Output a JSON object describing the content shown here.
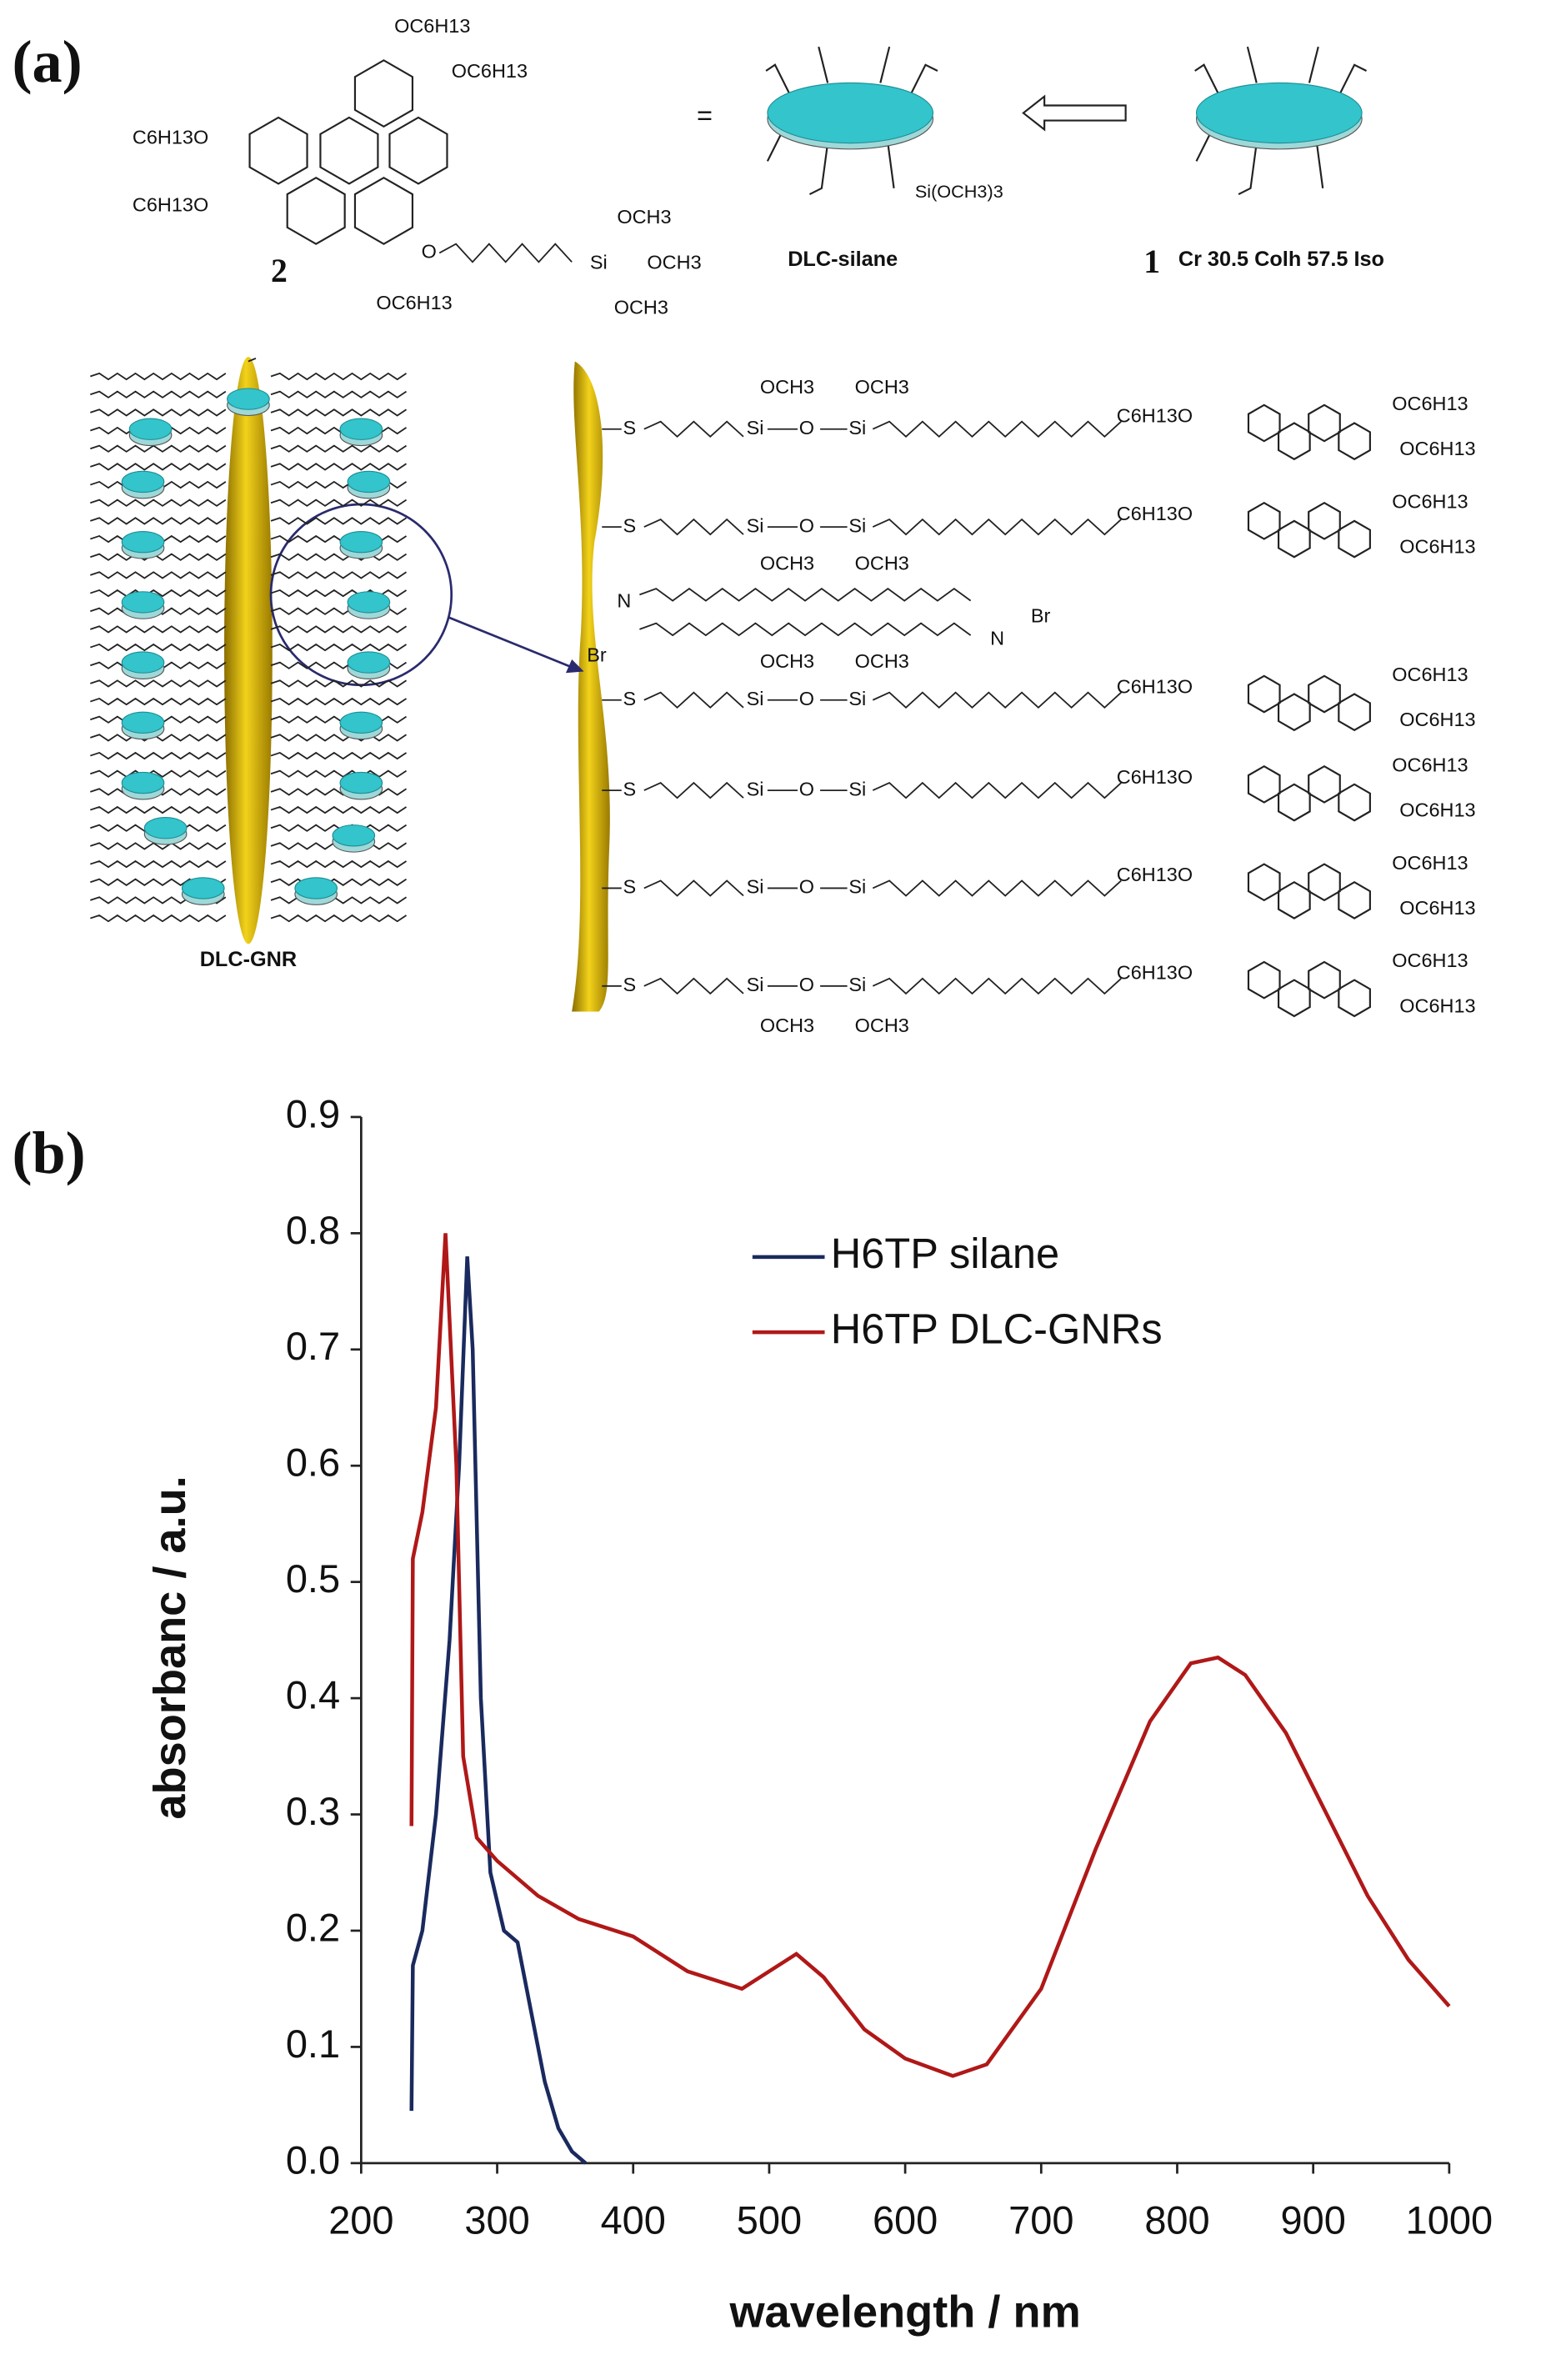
{
  "panel_labels": [
    "(a)",
    "(b)"
  ],
  "scheme": {
    "equals": "=",
    "compound_2": "2",
    "compound_1": "1",
    "dlc_silane": "DLC-silane",
    "silane_group": "Si(OCH3)3",
    "phase": "Cr 30.5 Colh 57.5 Iso",
    "dlc_gnr": "DLC-GNR",
    "molecule_labels": [
      "OC6H13",
      "OC6H13",
      "C6H13O",
      "C6H13O",
      "OC6H13",
      "OCH3",
      "Si",
      "OCH3",
      "OCH3",
      "O"
    ],
    "rows": [
      {
        "s": "S",
        "si1": "Si",
        "o": "O",
        "si2": "Si",
        "left": "C6H13O",
        "right1": "OC6H13",
        "right2": "OC6H13"
      },
      {
        "s": "S",
        "si1": "Si",
        "o": "O",
        "si2": "Si",
        "left": "C6H13O",
        "right1": "OC6H13",
        "right2": "OC6H13"
      },
      {
        "s": "S",
        "si1": "Si",
        "o": "O",
        "si2": "Si",
        "left": "C6H13O",
        "right1": "OC6H13",
        "right2": "OC6H13"
      },
      {
        "s": "S",
        "si1": "Si",
        "o": "O",
        "si2": "Si",
        "left": "C6H13O",
        "right1": "OC6H13",
        "right2": "OC6H13"
      },
      {
        "s": "S",
        "si1": "Si",
        "o": "O",
        "si2": "Si",
        "left": "C6H13O",
        "right1": "OC6H13",
        "right2": "OC6H13"
      },
      {
        "s": "S",
        "si1": "Si",
        "o": "O",
        "si2": "Si",
        "left": "C6H13O",
        "right1": "OC6H13",
        "right2": "OC6H13"
      }
    ],
    "methoxy_labels": [
      "OCH3",
      "OCH3",
      "OCH3",
      "OCH3",
      "OCH3",
      "OCH3",
      "OCH3",
      "OCH3"
    ],
    "ammonium_labels": [
      "N",
      "Br",
      "N",
      "Br"
    ]
  },
  "chart_data": {
    "type": "line",
    "x_label": "wavelength / nm",
    "y_label": "absorbanc / a.u.",
    "xlim": [
      200,
      1000
    ],
    "ylim": [
      0,
      0.9
    ],
    "xticks": [
      200,
      300,
      400,
      500,
      600,
      700,
      800,
      900,
      1000
    ],
    "yticks": [
      {
        "value": 0,
        "label": "0.0"
      },
      0.1,
      0.2,
      0.3,
      0.4,
      0.5,
      0.6,
      0.7,
      0.8,
      0.9
    ],
    "grid": false,
    "legend": "upper right",
    "series": [
      {
        "name": "H6TP silane",
        "color": "#1a2a5e",
        "x": [
          237,
          238,
          245,
          255,
          265,
          272,
          278,
          282,
          288,
          295,
          305,
          315,
          325,
          335,
          345,
          355,
          365
        ],
        "values": [
          0.045,
          0.17,
          0.2,
          0.3,
          0.45,
          0.6,
          0.78,
          0.7,
          0.4,
          0.25,
          0.2,
          0.19,
          0.13,
          0.07,
          0.03,
          0.01,
          0.0
        ]
      },
      {
        "name": "H6TP DLC-GNRs",
        "color": "#b01818",
        "x": [
          237,
          238,
          245,
          255,
          262,
          266,
          270,
          275,
          285,
          300,
          330,
          360,
          400,
          440,
          480,
          500,
          520,
          540,
          570,
          600,
          635,
          660,
          700,
          740,
          780,
          810,
          830,
          850,
          880,
          910,
          940,
          970,
          1000
        ],
        "values": [
          0.29,
          0.52,
          0.56,
          0.65,
          0.8,
          0.7,
          0.6,
          0.35,
          0.28,
          0.26,
          0.23,
          0.21,
          0.195,
          0.165,
          0.15,
          0.165,
          0.18,
          0.16,
          0.115,
          0.09,
          0.075,
          0.085,
          0.15,
          0.27,
          0.38,
          0.43,
          0.435,
          0.42,
          0.37,
          0.3,
          0.23,
          0.175,
          0.135
        ]
      }
    ]
  }
}
